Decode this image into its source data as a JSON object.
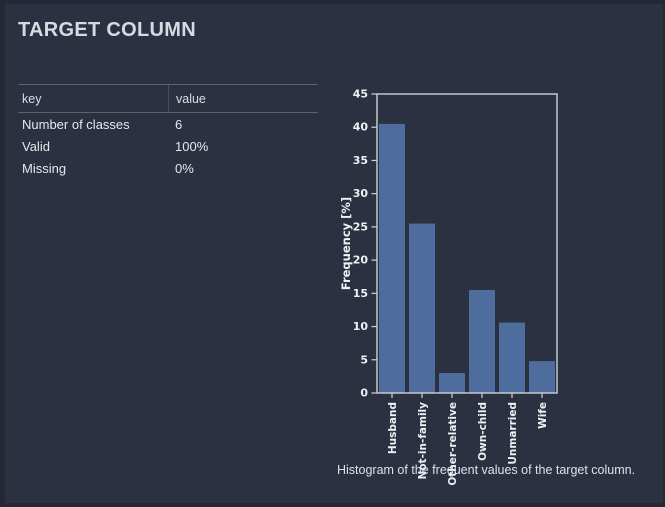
{
  "page": {
    "title": "TARGET COLUMN",
    "caption": "Histogram of the frequent values of the target column."
  },
  "table": {
    "columns": [
      "key",
      "value"
    ],
    "rows": [
      {
        "key": "Number of classes",
        "value": "6"
      },
      {
        "key": "Valid",
        "value": "100%"
      },
      {
        "key": "Missing",
        "value": "0%"
      }
    ]
  },
  "chart_data": {
    "type": "bar",
    "title": "",
    "categories": [
      "Husband",
      "Not-in-family",
      "Other-relative",
      "Own-child",
      "Unmarried",
      "Wife"
    ],
    "values": [
      40.5,
      25.5,
      3.0,
      15.5,
      10.6,
      4.8
    ],
    "xlabel": "",
    "ylabel": "Frequency [%]",
    "ylim": [
      0,
      45
    ],
    "ytick_step": 5,
    "yticks": [
      0,
      5,
      10,
      15,
      20,
      25,
      30,
      35,
      40,
      45
    ],
    "grid": false,
    "legend": "none",
    "bar_color": "#4e6d9e",
    "axis_color": "#cdd3db",
    "label_color": "#eef1f5"
  }
}
